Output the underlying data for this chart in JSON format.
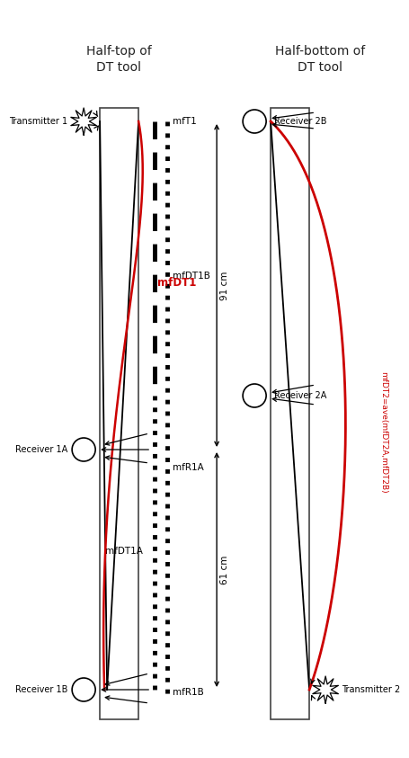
{
  "title_left": "Half-top of\nDT tool",
  "title_right": "Half-bottom of\nDT tool",
  "bg_color": "#ffffff",
  "label_mfT1": "mfT1",
  "label_mfDT1": "mfDT1",
  "label_mfDT1A": "mfDT1A",
  "label_mfDT1B": "mfDT1B",
  "label_mfR1A": "mfR1A",
  "label_mfR1B": "mfR1B",
  "label_mfDT2": "mfDT2=ave(mfDT2A,mfDT2B)",
  "label_T1": "Transmitter 1",
  "label_T2": "Transmitter 2",
  "label_R1A": "Receiver 1A",
  "label_R1B": "Receiver 1B",
  "label_R2A": "Receiver 2A",
  "label_R2B": "Receiver 2B",
  "dim_91": "91 cm",
  "dim_61": "61 cm"
}
